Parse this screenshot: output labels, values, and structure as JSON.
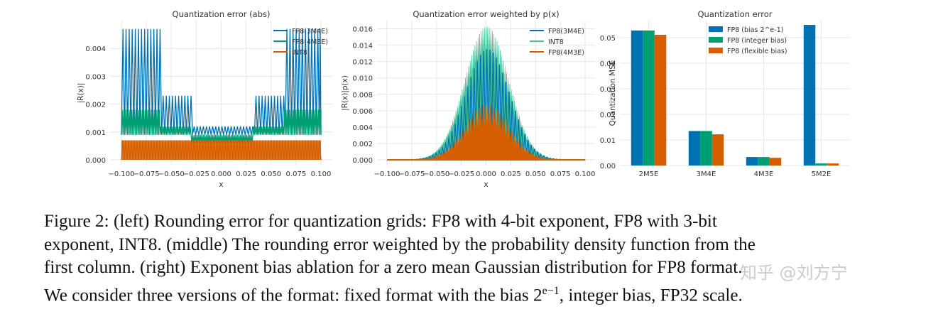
{
  "colors": {
    "blue": "#0072b2",
    "green": "#009e73",
    "lightgreen": "#46c29c",
    "orange": "#d55e00",
    "grid": "#e6e6e6",
    "axes_bg": "#ffffff"
  },
  "caption": {
    "line1": "Figure 2: (left) Rounding error for quantization grids: FP8 with 4-bit exponent, FP8 with 3-bit",
    "line2": "exponent, INT8. (middle) The rounding error weighted by the probability density function from the",
    "line3": "first column. (right) Exponent bias ablation for a zero mean Gaussian distribution for FP8 format.",
    "line4_pre": "We consider three versions of the format: fixed format with the bias 2",
    "line4_sup": "e−1",
    "line4_post": ", integer bias, FP32 scale."
  },
  "watermark": "知乎 @刘方宁",
  "chart_data": [
    {
      "type": "line",
      "title": "Quantization error (abs)",
      "xlabel": "x",
      "ylabel": "|R(x)|",
      "xlim": [
        -0.1,
        0.1
      ],
      "ylim": [
        0.0,
        0.005
      ],
      "xticks": [
        "−0.100",
        "−0.075",
        "−0.050",
        "−0.025",
        "0.000",
        "0.025",
        "0.050",
        "0.075",
        "0.100"
      ],
      "xtick_values": [
        -0.1,
        -0.075,
        -0.05,
        -0.025,
        0.0,
        0.025,
        0.05,
        0.075,
        0.1
      ],
      "yticks": [
        "0.000",
        "0.001",
        "0.002",
        "0.003",
        "0.004"
      ],
      "ytick_values": [
        0.0,
        0.001,
        0.002,
        0.003,
        0.004
      ],
      "grid": true,
      "legend": "top-right",
      "series": [
        {
          "name": "FP8(3M4E)",
          "color": "#0072b2",
          "peaks": [
            [
              -0.1,
              0.0047
            ],
            [
              -0.0625,
              0.0047
            ],
            [
              -0.0625,
              0.0023
            ],
            [
              -0.03125,
              0.0023
            ],
            [
              -0.03125,
              0.0012
            ],
            [
              0.03125,
              0.0012
            ],
            [
              0.03125,
              0.0023
            ],
            [
              0.0625,
              0.0023
            ],
            [
              0.0625,
              0.0047
            ],
            [
              0.1,
              0.0047
            ]
          ],
          "period": 0.0062
        },
        {
          "name": "FP8(4M3E)",
          "color": "#009e73",
          "peaks": [
            [
              -0.1,
              0.0018
            ],
            [
              -0.0625,
              0.0018
            ],
            [
              -0.0625,
              0.0012
            ],
            [
              -0.03125,
              0.0012
            ],
            [
              -0.03125,
              0.0006
            ],
            [
              0.03125,
              0.0006
            ],
            [
              0.03125,
              0.0012
            ],
            [
              0.0625,
              0.0012
            ],
            [
              0.0625,
              0.0018
            ],
            [
              0.1,
              0.0018
            ]
          ],
          "period": 0.0031
        },
        {
          "name": "INT8",
          "color": "#d55e00",
          "level": 0.0007
        }
      ]
    },
    {
      "type": "area",
      "title": "Quantization error weighted by p(x)",
      "xlabel": "x",
      "ylabel": "|R(x)|p(x)",
      "xlim": [
        -0.1,
        0.1
      ],
      "ylim": [
        0.0,
        0.017
      ],
      "xticks": [
        "−0.100",
        "−0.075",
        "−0.050",
        "−0.025",
        "0.000",
        "0.025",
        "0.050",
        "0.075",
        "0.100"
      ],
      "xtick_values": [
        -0.1,
        -0.075,
        -0.05,
        -0.025,
        0.0,
        0.025,
        0.05,
        0.075,
        0.1
      ],
      "yticks": [
        "0.000",
        "0.002",
        "0.004",
        "0.006",
        "0.008",
        "0.010",
        "0.012",
        "0.014",
        "0.016"
      ],
      "ytick_values": [
        0.0,
        0.002,
        0.004,
        0.006,
        0.008,
        0.01,
        0.012,
        0.014,
        0.016
      ],
      "grid": true,
      "legend": "top-right",
      "series": [
        {
          "name": "FP8(3M4E)",
          "color": "#0072b2",
          "peak": 0.0135
        },
        {
          "name": "INT8",
          "color": "#46c29c",
          "peak": 0.0162
        },
        {
          "name": "FP8(4M3E)",
          "color": "#d55e00",
          "peak": 0.0068
        }
      ]
    },
    {
      "type": "bar",
      "title": "Quantization error",
      "xlabel": "",
      "ylabel": "Quantization MSE",
      "categories": [
        "2M5E",
        "3M4E",
        "4M3E",
        "5M2E"
      ],
      "ylim": [
        0.0,
        0.055
      ],
      "yticks": [
        "0.00",
        "0.01",
        "0.02",
        "0.03",
        "0.04",
        "0.05"
      ],
      "ytick_values": [
        0.0,
        0.01,
        0.02,
        0.03,
        0.04,
        0.05
      ],
      "grid": true,
      "legend": "top-left",
      "series": [
        {
          "name": "FP8 (bias 2^e-1)",
          "color": "#0072b2",
          "values": [
            0.0528,
            0.0135,
            0.0033,
            0.055
          ]
        },
        {
          "name": "FP8 (integer bias)",
          "color": "#009e73",
          "values": [
            0.0528,
            0.0135,
            0.0033,
            0.0008
          ]
        },
        {
          "name": "FP8 (flexible bias)",
          "color": "#d55e00",
          "values": [
            0.0511,
            0.0122,
            0.003,
            0.0008
          ]
        }
      ]
    }
  ]
}
